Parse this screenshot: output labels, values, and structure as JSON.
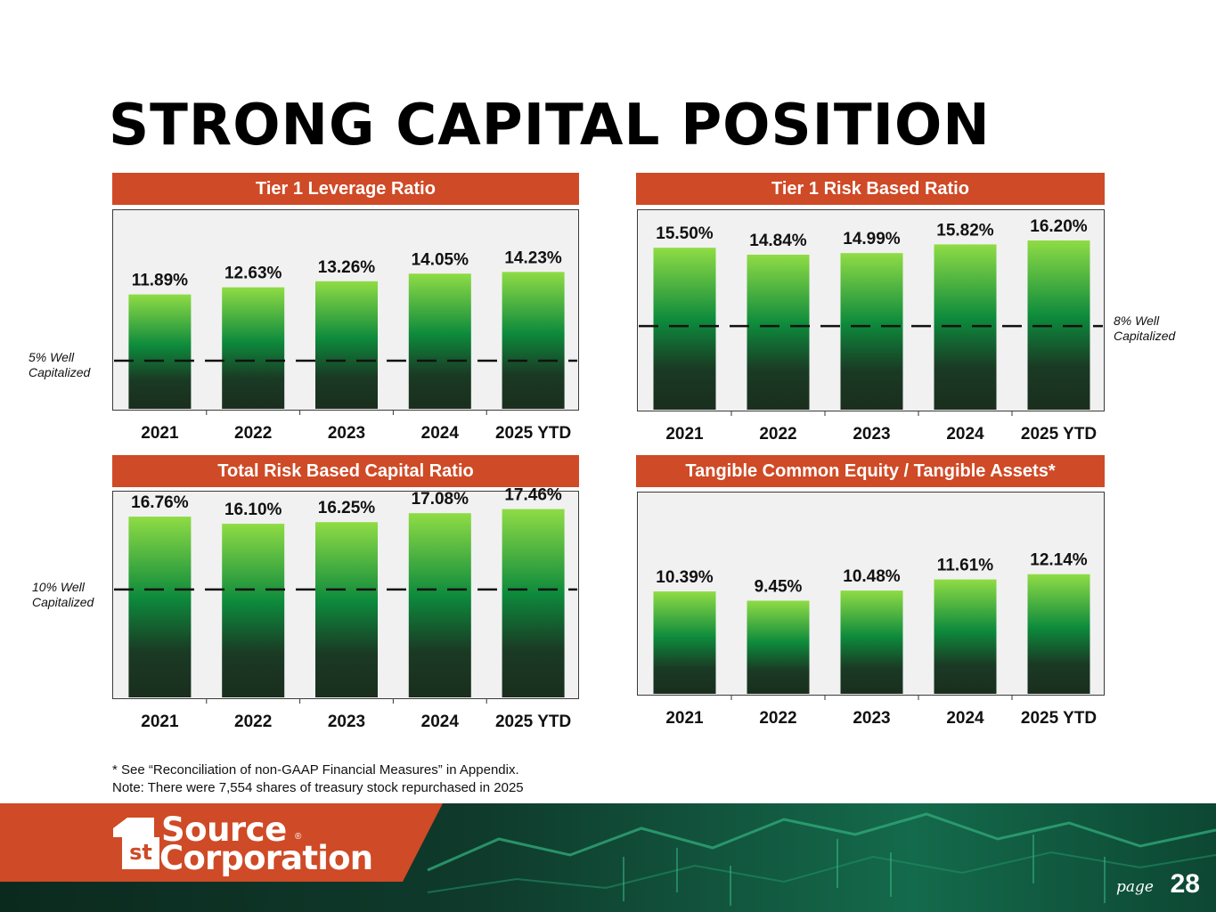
{
  "page": {
    "title": "STRONG CAPITAL POSITION",
    "footnote_1": "* See “Reconciliation of non-GAAP Financial Measures” in Appendix.",
    "footnote_2": "Note: There were 7,554 shares of treasury stock repurchased in 2025",
    "page_label": "page",
    "page_number": "28",
    "logo_line_1": "Source",
    "logo_line_2": "Corporation",
    "logo_badge": "st",
    "logo_mark": "®",
    "colors": {
      "header": "#cf4a26",
      "bar_top": "#8fdc45",
      "bar_mid": "#0d8a3c",
      "bar_bottom": "#1a2e1e"
    }
  },
  "chart_data": [
    {
      "type": "bar",
      "title": "Tier 1 Leverage Ratio",
      "categories": [
        "2021",
        "2022",
        "2023",
        "2024",
        "2025 YTD"
      ],
      "values": [
        11.89,
        12.63,
        13.26,
        14.05,
        14.23
      ],
      "labels": [
        "11.89%",
        "12.63%",
        "13.26%",
        "14.05%",
        "14.23%"
      ],
      "reference_line": 5,
      "reference_label_1": "5% Well",
      "reference_label_2": "Capitalized",
      "ylim": [
        0,
        20
      ],
      "xlabel": "",
      "ylabel": ""
    },
    {
      "type": "bar",
      "title": "Tier 1 Risk Based Ratio",
      "categories": [
        "2021",
        "2022",
        "2023",
        "2024",
        "2025 YTD"
      ],
      "values": [
        15.5,
        14.84,
        14.99,
        15.82,
        16.2
      ],
      "labels": [
        "15.50%",
        "14.84%",
        "14.99%",
        "15.82%",
        "16.20%"
      ],
      "reference_line": 8,
      "reference_label_1": "8% Well",
      "reference_label_2": "Capitalized",
      "ylim": [
        0,
        18.5
      ],
      "xlabel": "",
      "ylabel": ""
    },
    {
      "type": "bar",
      "title": "Total Risk Based Capital Ratio",
      "categories": [
        "2021",
        "2022",
        "2023",
        "2024",
        "2025 YTD"
      ],
      "values": [
        16.76,
        16.1,
        16.25,
        17.08,
        17.46
      ],
      "labels": [
        "16.76%",
        "16.10%",
        "16.25%",
        "17.08%",
        "17.46%"
      ],
      "reference_line": 10,
      "reference_label_1": "10% Well",
      "reference_label_2": "Capitalized",
      "ylim": [
        0,
        18.5
      ],
      "xlabel": "",
      "ylabel": ""
    },
    {
      "type": "bar",
      "title": "Tangible Common Equity / Tangible Assets*",
      "categories": [
        "2021",
        "2022",
        "2023",
        "2024",
        "2025 YTD"
      ],
      "values": [
        10.39,
        9.45,
        10.48,
        11.61,
        12.14
      ],
      "labels": [
        "10.39%",
        "9.45%",
        "10.48%",
        "11.61%",
        "12.14%"
      ],
      "ylim": [
        0,
        19.8
      ],
      "xlabel": "",
      "ylabel": ""
    }
  ]
}
